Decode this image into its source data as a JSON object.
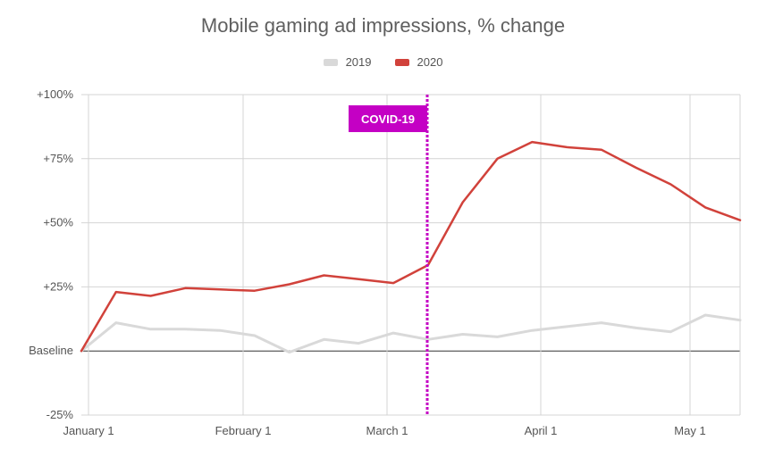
{
  "chart_data": {
    "type": "line",
    "title": "Mobile gaming ad impressions, % change",
    "xlabel": "",
    "ylabel": "",
    "x_ticks": [
      "January 1",
      "February 1",
      "March 1",
      "April 1",
      "May 1"
    ],
    "y_ticks": [
      "+100%",
      "+75%",
      "+50%",
      "+25%",
      "Baseline",
      "-25%"
    ],
    "ylim": [
      -25,
      100
    ],
    "grid": true,
    "legend_position": "top-center",
    "annotation": {
      "label": "COVID-19",
      "week": 11,
      "color": "#c400c4"
    },
    "weeks": [
      0,
      1,
      2,
      3,
      4,
      5,
      6,
      7,
      8,
      9,
      10,
      11,
      12,
      13,
      14,
      15,
      16,
      17,
      18,
      19
    ],
    "series": [
      {
        "name": "2019",
        "color": "#d9d9d9",
        "values": [
          0,
          11,
          8.5,
          8.5,
          8,
          6,
          -0.5,
          4.5,
          3,
          7,
          4.5,
          6.5,
          5.5,
          8,
          9.5,
          11,
          9,
          7.5,
          14,
          12
        ]
      },
      {
        "name": "2020",
        "color": "#d1423b",
        "values": [
          0,
          23,
          21.5,
          24.5,
          24,
          23.5,
          26,
          29.5,
          28,
          26.5,
          33.5,
          58,
          75,
          81.5,
          79.5,
          78.5,
          71.5,
          65,
          56,
          51
        ]
      }
    ]
  }
}
